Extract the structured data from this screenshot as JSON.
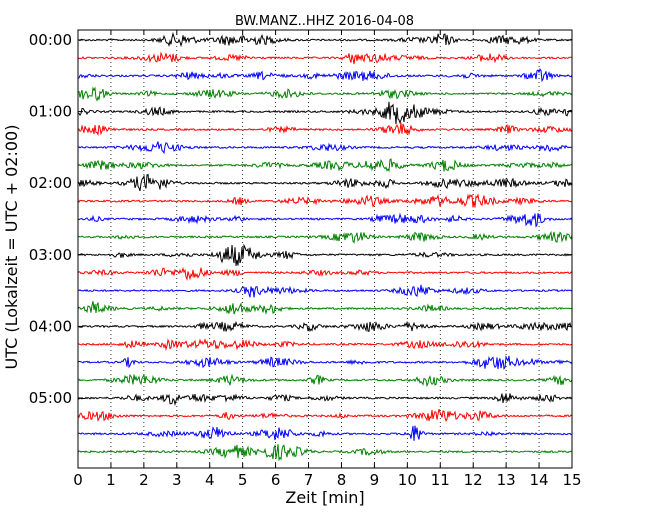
{
  "chart_data": {
    "type": "line",
    "title": "BW.MANZ..HHZ 2016-04-08",
    "xlabel": "Zeit  [min]",
    "ylabel": "UTC (Lokalzeit = UTC + 02:00)",
    "xlim": [
      0,
      15
    ],
    "x_ticks": [
      "0",
      "1",
      "2",
      "3",
      "4",
      "5",
      "6",
      "7",
      "8",
      "9",
      "10",
      "11",
      "12",
      "13",
      "14",
      "15"
    ],
    "y_ticks": [
      "00:00",
      "01:00",
      "02:00",
      "03:00",
      "04:00",
      "05:00"
    ],
    "grid": "vertical dotted at each minute",
    "trace_interval_minutes": 15,
    "trace_colors": [
      "#000000",
      "#ff0000",
      "#0000ff",
      "#008000"
    ],
    "trace_count": 24
  }
}
